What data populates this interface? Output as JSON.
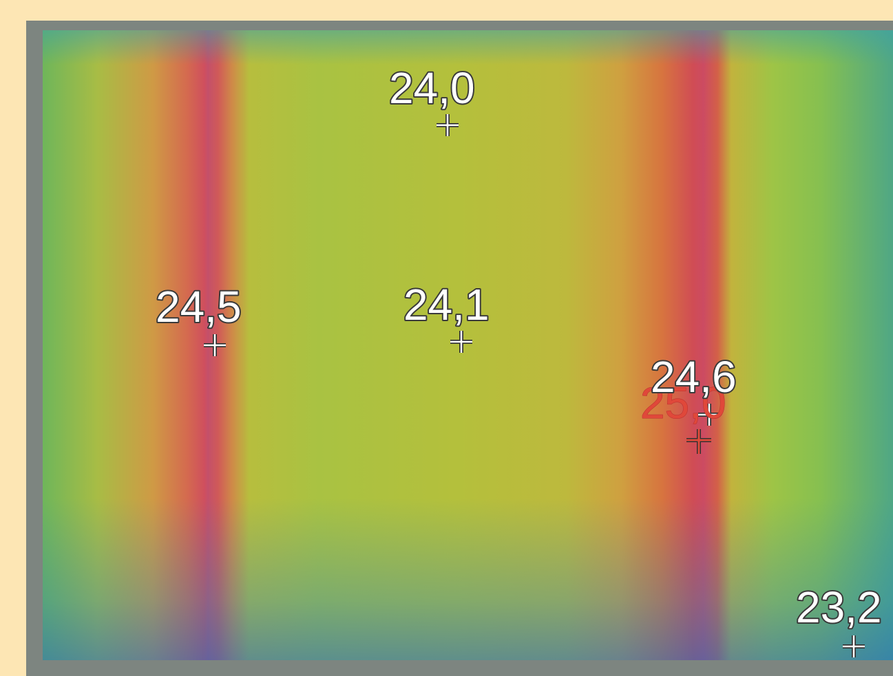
{
  "readings": [
    {
      "label": "24,0"
    },
    {
      "label": "24,5"
    },
    {
      "label": "24,1"
    },
    {
      "label": "24,6"
    },
    {
      "label": "25,0"
    },
    {
      "label": "23,2"
    }
  ]
}
